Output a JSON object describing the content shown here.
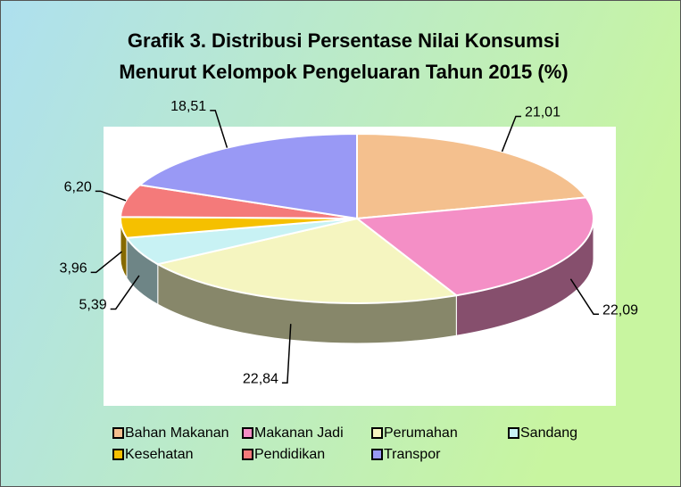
{
  "chart_data": {
    "type": "pie",
    "title": [
      "Grafik 3. Distribusi Persentase Nilai Konsumsi",
      "Menurut Kelompok Pengeluaran Tahun 2015 (%)"
    ],
    "categories": [
      "Bahan Makanan",
      "Makanan Jadi",
      "Perumahan",
      "Sandang",
      "Kesehatan",
      "Pendidikan",
      "Transpor"
    ],
    "values": [
      21.01,
      22.09,
      22.84,
      5.39,
      3.96,
      6.2,
      18.51
    ],
    "value_labels": [
      "21,01",
      "22,09",
      "22,84",
      "5,39",
      "3,96",
      "6,20",
      "18,51"
    ],
    "colors": [
      "#f4c08e",
      "#f48fc6",
      "#f5f5c0",
      "#c8f2f4",
      "#f5c000",
      "#f47a7a",
      "#9999f5"
    ],
    "legend": "bottom"
  }
}
